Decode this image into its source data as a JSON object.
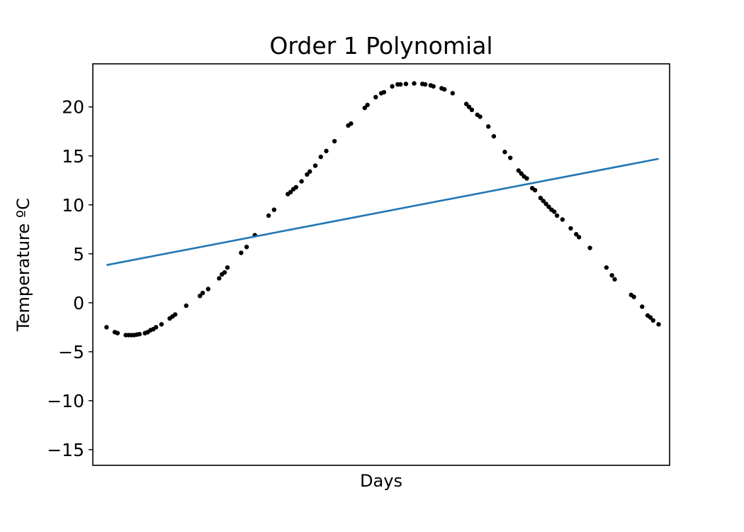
{
  "chart_data": {
    "type": "scatter",
    "title": "Order 1 Polynomial",
    "xlabel": "Days",
    "ylabel": "Temperature ºC",
    "x_ticks_shown": false,
    "xlim": [
      -5,
      205
    ],
    "ylim": [
      -16.6,
      24.4
    ],
    "y_ticks": [
      {
        "value": 20,
        "label": "20"
      },
      {
        "value": 15,
        "label": "15"
      },
      {
        "value": 10,
        "label": "10"
      },
      {
        "value": 5,
        "label": "5"
      },
      {
        "value": 0,
        "label": "0"
      },
      {
        "value": -5,
        "label": "−5"
      },
      {
        "value": -10,
        "label": "−10"
      },
      {
        "value": -15,
        "label": "−15"
      }
    ],
    "grid": false,
    "colors": {
      "points": "#000000",
      "fit_line": "#1f77b4",
      "axes": "#000000",
      "background": "#ffffff"
    },
    "series": [
      {
        "kind": "scatter",
        "points": [
          [
            0,
            -2.5
          ],
          [
            3,
            -3.0
          ],
          [
            4,
            -3.1
          ],
          [
            7,
            -3.3
          ],
          [
            8,
            -3.3
          ],
          [
            9,
            -3.3
          ],
          [
            10,
            -3.3
          ],
          [
            11,
            -3.25
          ],
          [
            12,
            -3.2
          ],
          [
            14,
            -3.1
          ],
          [
            15,
            -3.0
          ],
          [
            16,
            -2.8
          ],
          [
            17,
            -2.7
          ],
          [
            18,
            -2.5
          ],
          [
            20,
            -2.2
          ],
          [
            23,
            -1.6
          ],
          [
            24,
            -1.4
          ],
          [
            25,
            -1.2
          ],
          [
            29,
            -0.3
          ],
          [
            34,
            0.7
          ],
          [
            35,
            1.0
          ],
          [
            37,
            1.4
          ],
          [
            41,
            2.5
          ],
          [
            42,
            2.9
          ],
          [
            43,
            3.1
          ],
          [
            44,
            3.6
          ],
          [
            49,
            5.1
          ],
          [
            51,
            5.7
          ],
          [
            54,
            6.9
          ],
          [
            59,
            8.9
          ],
          [
            61,
            9.5
          ],
          [
            66,
            11.1
          ],
          [
            67,
            11.3
          ],
          [
            68,
            11.6
          ],
          [
            69,
            11.8
          ],
          [
            71,
            12.4
          ],
          [
            73,
            13.1
          ],
          [
            74,
            13.4
          ],
          [
            76,
            14.0
          ],
          [
            78,
            14.9
          ],
          [
            80,
            15.5
          ],
          [
            83,
            16.5
          ],
          [
            88,
            18.1
          ],
          [
            89,
            18.3
          ],
          [
            94,
            19.9
          ],
          [
            95,
            20.2
          ],
          [
            98,
            21.0
          ],
          [
            100,
            21.4
          ],
          [
            101,
            21.5
          ],
          [
            104,
            22.1
          ],
          [
            106,
            22.3
          ],
          [
            107,
            22.3
          ],
          [
            109,
            22.35
          ],
          [
            112,
            22.4
          ],
          [
            115,
            22.35
          ],
          [
            116,
            22.3
          ],
          [
            118,
            22.2
          ],
          [
            119,
            22.1
          ],
          [
            122,
            21.9
          ],
          [
            123,
            21.8
          ],
          [
            126,
            21.4
          ],
          [
            131,
            20.3
          ],
          [
            132,
            20.0
          ],
          [
            133,
            19.7
          ],
          [
            135,
            19.2
          ],
          [
            136,
            19.0
          ],
          [
            139,
            18.0
          ],
          [
            141,
            17.0
          ],
          [
            145,
            15.4
          ],
          [
            147,
            14.8
          ],
          [
            150,
            13.5
          ],
          [
            151,
            13.2
          ],
          [
            152,
            12.9
          ],
          [
            153,
            12.7
          ],
          [
            155,
            11.7
          ],
          [
            156,
            11.5
          ],
          [
            158,
            10.7
          ],
          [
            159,
            10.4
          ],
          [
            160,
            10.1
          ],
          [
            161,
            9.8
          ],
          [
            162,
            9.5
          ],
          [
            163,
            9.3
          ],
          [
            164,
            8.9
          ],
          [
            166,
            8.5
          ],
          [
            169,
            7.6
          ],
          [
            171,
            7.0
          ],
          [
            172,
            6.7
          ],
          [
            176,
            5.6
          ],
          [
            182,
            3.6
          ],
          [
            184,
            2.8
          ],
          [
            185,
            2.4
          ],
          [
            191,
            0.8
          ],
          [
            192,
            0.6
          ],
          [
            195,
            -0.4
          ],
          [
            197,
            -1.3
          ],
          [
            198,
            -1.5
          ],
          [
            199,
            -1.8
          ],
          [
            201,
            -2.2
          ]
        ]
      },
      {
        "kind": "line",
        "points": [
          [
            0,
            3.85
          ],
          [
            201,
            14.7
          ]
        ]
      }
    ]
  }
}
